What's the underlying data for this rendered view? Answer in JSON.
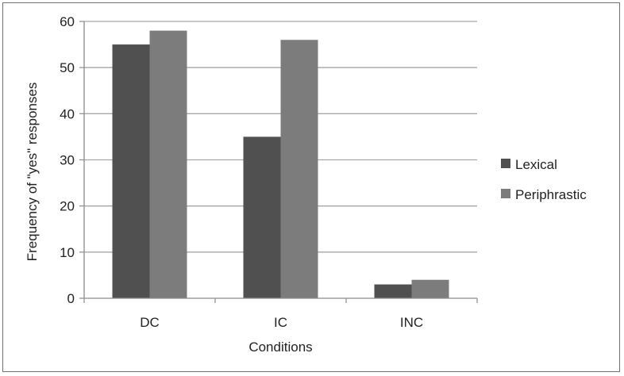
{
  "chart_data": {
    "type": "bar",
    "categories": [
      "DC",
      "IC",
      "INC"
    ],
    "series": [
      {
        "name": "Lexical",
        "values": [
          55,
          35,
          3
        ],
        "color": "#505050"
      },
      {
        "name": "Periphrastic",
        "values": [
          58,
          56,
          4
        ],
        "color": "#7c7c7c"
      }
    ],
    "title": "",
    "xlabel": "Conditions",
    "ylabel": "Frequency of \"yes\" responses",
    "ylim": [
      0,
      60
    ],
    "yticks": [
      0,
      10,
      20,
      30,
      40,
      50,
      60
    ],
    "grid": true,
    "legend": "right",
    "colors": {
      "grid": "#a6a6a6",
      "axis": "#8c8c8c",
      "text": "#222222"
    }
  }
}
